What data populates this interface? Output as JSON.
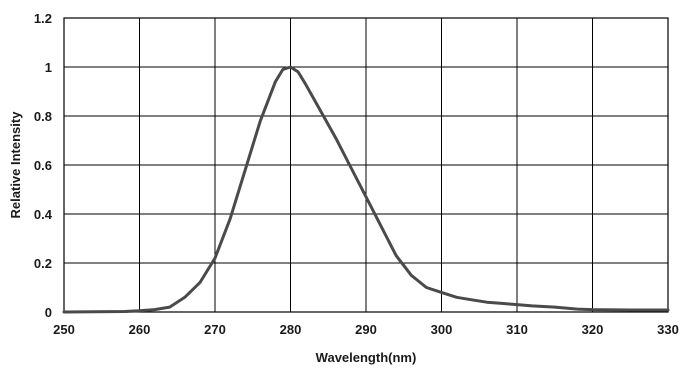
{
  "chart_data": {
    "type": "line",
    "title": "",
    "xlabel": "Wavelength(nm)",
    "ylabel": "Relative Intensity",
    "xlim": [
      250,
      330
    ],
    "ylim": [
      0,
      1.2
    ],
    "x_ticks": [
      "250",
      "260",
      "270",
      "280",
      "290",
      "300",
      "310",
      "320",
      "330"
    ],
    "y_ticks": [
      "0",
      "0.2",
      "0.4",
      "0.6",
      "0.8",
      "1",
      "1.2"
    ],
    "grid": true,
    "legend": "none",
    "colors": {
      "line": "#4a4a4a",
      "grid": "#000000",
      "text": "#1a1a1a"
    },
    "series": [
      {
        "x": [
          250,
          258,
          260,
          262,
          264,
          266,
          268,
          270,
          272,
          274,
          276,
          278,
          279,
          280,
          281,
          282,
          284,
          286,
          288,
          290,
          292,
          294,
          296,
          298,
          300,
          302,
          304,
          306,
          308,
          310,
          312,
          315,
          318,
          320,
          325,
          330
        ],
        "y": [
          0,
          0.002,
          0.005,
          0.01,
          0.02,
          0.06,
          0.12,
          0.22,
          0.38,
          0.58,
          0.78,
          0.94,
          0.99,
          1.0,
          0.98,
          0.93,
          0.82,
          0.71,
          0.59,
          0.47,
          0.35,
          0.23,
          0.15,
          0.1,
          0.08,
          0.06,
          0.05,
          0.04,
          0.035,
          0.03,
          0.025,
          0.02,
          0.012,
          0.01,
          0.008,
          0.008
        ]
      }
    ]
  }
}
